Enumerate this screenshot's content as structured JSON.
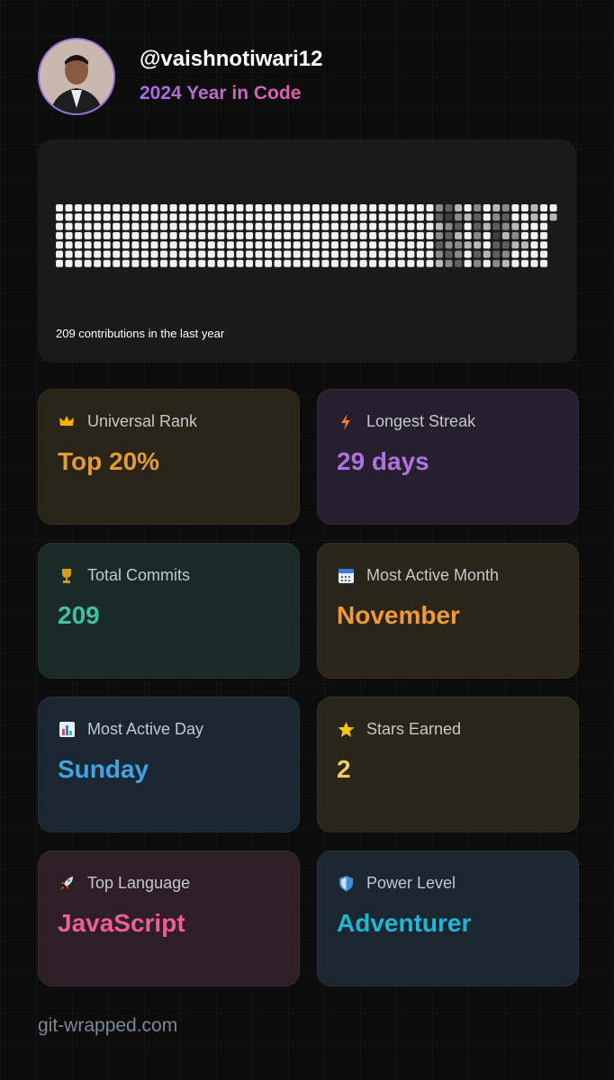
{
  "header": {
    "username": "@vaishnotiwari12",
    "subtitle": "2024 Year in Code"
  },
  "contributions": {
    "caption": "209 contributions in the last year",
    "weeks": [
      [
        0,
        0,
        0,
        0,
        0,
        0,
        0
      ],
      [
        0,
        0,
        0,
        0,
        0,
        0,
        0
      ],
      [
        0,
        0,
        0,
        0,
        0,
        0,
        0
      ],
      [
        0,
        0,
        0,
        0,
        0,
        0,
        0
      ],
      [
        0,
        0,
        0,
        0,
        0,
        0,
        0
      ],
      [
        0,
        0,
        0,
        0,
        0,
        0,
        0
      ],
      [
        0,
        0,
        0,
        0,
        0,
        0,
        0
      ],
      [
        0,
        0,
        0,
        0,
        0,
        0,
        0
      ],
      [
        0,
        0,
        0,
        0,
        0,
        0,
        0
      ],
      [
        0,
        0,
        0,
        0,
        0,
        0,
        0
      ],
      [
        0,
        0,
        0,
        0,
        0,
        0,
        0
      ],
      [
        0,
        0,
        0,
        0,
        0,
        0,
        0
      ],
      [
        0,
        0,
        0,
        0,
        0,
        0,
        0
      ],
      [
        0,
        0,
        0,
        0,
        0,
        0,
        0
      ],
      [
        0,
        0,
        0,
        0,
        0,
        0,
        0
      ],
      [
        0,
        0,
        0,
        0,
        0,
        0,
        0
      ],
      [
        0,
        0,
        0,
        0,
        0,
        0,
        0
      ],
      [
        0,
        0,
        0,
        0,
        0,
        0,
        0
      ],
      [
        0,
        0,
        0,
        0,
        0,
        0,
        0
      ],
      [
        0,
        0,
        0,
        0,
        0,
        0,
        0
      ],
      [
        0,
        0,
        0,
        0,
        0,
        0,
        0
      ],
      [
        0,
        0,
        0,
        0,
        0,
        0,
        0
      ],
      [
        0,
        0,
        0,
        0,
        0,
        0,
        0
      ],
      [
        0,
        0,
        0,
        0,
        0,
        0,
        0
      ],
      [
        0,
        0,
        0,
        0,
        0,
        0,
        0
      ],
      [
        0,
        0,
        0,
        0,
        0,
        0,
        0
      ],
      [
        0,
        0,
        0,
        0,
        0,
        0,
        0
      ],
      [
        0,
        0,
        0,
        0,
        0,
        0,
        0
      ],
      [
        0,
        0,
        0,
        0,
        0,
        0,
        0
      ],
      [
        0,
        0,
        0,
        0,
        0,
        0,
        0
      ],
      [
        0,
        0,
        0,
        0,
        0,
        0,
        0
      ],
      [
        0,
        0,
        0,
        0,
        0,
        0,
        0
      ],
      [
        0,
        0,
        0,
        0,
        0,
        0,
        0
      ],
      [
        0,
        0,
        0,
        0,
        0,
        0,
        0
      ],
      [
        0,
        0,
        0,
        0,
        0,
        0,
        0
      ],
      [
        0,
        0,
        0,
        0,
        0,
        0,
        0
      ],
      [
        0,
        0,
        0,
        0,
        0,
        0,
        0
      ],
      [
        0,
        0,
        0,
        0,
        0,
        0,
        0
      ],
      [
        0,
        0,
        0,
        0,
        0,
        0,
        0
      ],
      [
        0,
        0,
        0,
        0,
        0,
        0,
        0
      ],
      [
        2,
        3,
        1,
        2,
        3,
        2,
        1
      ],
      [
        3,
        4,
        2,
        3,
        2,
        3,
        2
      ],
      [
        1,
        2,
        3,
        1,
        2,
        2,
        3
      ],
      [
        0,
        1,
        0,
        0,
        1,
        0,
        0
      ],
      [
        2,
        3,
        3,
        2,
        1,
        3,
        2
      ],
      [
        0,
        0,
        1,
        0,
        0,
        1,
        0
      ],
      [
        1,
        2,
        3,
        4,
        3,
        3,
        2
      ],
      [
        2,
        3,
        2,
        1,
        3,
        2,
        1
      ],
      [
        0,
        0,
        1,
        2,
        1,
        0,
        0
      ],
      [
        0,
        0,
        0,
        0,
        1,
        0,
        0
      ],
      [
        1,
        1,
        0,
        0,
        0,
        0,
        0
      ],
      [
        0,
        0,
        0,
        0,
        0,
        0,
        0
      ],
      [
        0,
        1
      ]
    ]
  },
  "stats": [
    {
      "label": "Universal Rank",
      "value": "Top 20%"
    },
    {
      "label": "Longest Streak",
      "value": "29 days"
    },
    {
      "label": "Total Commits",
      "value": "209"
    },
    {
      "label": "Most Active Month",
      "value": "November"
    },
    {
      "label": "Most Active Day",
      "value": "Sunday"
    },
    {
      "label": "Stars Earned",
      "value": "2"
    },
    {
      "label": "Top Language",
      "value": "JavaScript"
    },
    {
      "label": "Power Level",
      "value": "Adventurer"
    }
  ],
  "footer": "git-wrapped.com"
}
